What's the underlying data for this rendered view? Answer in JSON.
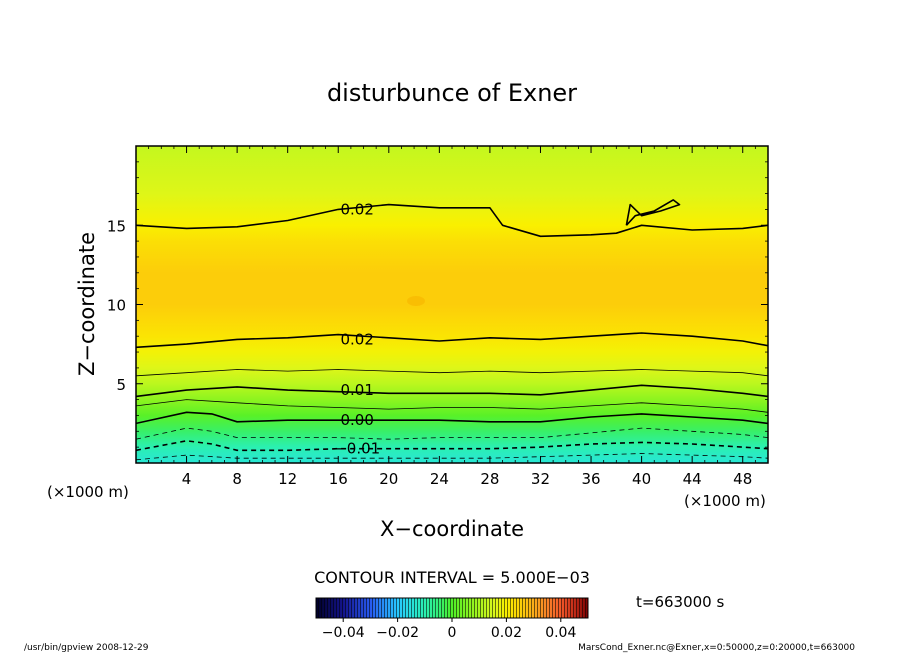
{
  "chart_data": {
    "type": "contour",
    "title": "disturbunce of Exner",
    "xlabel": "X−coordinate",
    "ylabel": "Z−coordinate",
    "x_unit_left": "(×1000 m)",
    "x_unit_right": "(×1000 m)",
    "xlim": [
      0,
      50
    ],
    "ylim": [
      0,
      20
    ],
    "xticks": [
      4,
      8,
      12,
      16,
      20,
      24,
      28,
      32,
      36,
      40,
      44,
      48
    ],
    "xtick_labels": [
      "4",
      "8",
      "12",
      "16",
      "20",
      "24",
      "28",
      "32",
      "36",
      "40",
      "44",
      "48"
    ],
    "yticks": [
      5,
      10,
      15
    ],
    "ytick_labels": [
      "5",
      "10",
      "15"
    ],
    "contour_interval_text": "CONTOUR INTERVAL = 5.000E−03",
    "time_text": "t=663000 s",
    "colorbar": {
      "min": -0.05,
      "max": 0.05,
      "tick_values": [
        -0.04,
        -0.02,
        0,
        0.02,
        0.04
      ],
      "tick_labels": [
        "−0.04",
        "−0.02",
        "0",
        "0.02",
        "0.04"
      ]
    },
    "contour_labels": [
      {
        "text": "0.02",
        "x": 17.5,
        "z": 16.0
      },
      {
        "text": "0.02",
        "x": 17.5,
        "z": 7.8
      },
      {
        "text": "0.01",
        "x": 17.5,
        "z": 4.6
      },
      {
        "text": "0.00",
        "x": 17.5,
        "z": 2.7
      },
      {
        "text": "−0.01",
        "x": 17.5,
        "z": 0.9
      }
    ],
    "field_profile": [
      {
        "z": 0,
        "value": -0.014
      },
      {
        "z": 1,
        "value": -0.01
      },
      {
        "z": 2,
        "value": -0.004
      },
      {
        "z": 3,
        "value": 0.001
      },
      {
        "z": 4,
        "value": 0.007
      },
      {
        "z": 5,
        "value": 0.012
      },
      {
        "z": 6,
        "value": 0.016
      },
      {
        "z": 7,
        "value": 0.019
      },
      {
        "z": 8,
        "value": 0.022
      },
      {
        "z": 10,
        "value": 0.026
      },
      {
        "z": 12,
        "value": 0.026
      },
      {
        "z": 14,
        "value": 0.023
      },
      {
        "z": 15,
        "value": 0.02
      },
      {
        "z": 17,
        "value": 0.016
      },
      {
        "z": 20,
        "value": 0.013
      }
    ],
    "contour_lines": [
      {
        "level": 0.02,
        "style": "solid",
        "points": [
          [
            0,
            15.0
          ],
          [
            4,
            14.8
          ],
          [
            8,
            14.9
          ],
          [
            12,
            15.3
          ],
          [
            16,
            16.0
          ],
          [
            20,
            16.3
          ],
          [
            24,
            16.1
          ],
          [
            28,
            16.1
          ],
          [
            29,
            15.0
          ],
          [
            32,
            14.3
          ],
          [
            36,
            14.4
          ],
          [
            38,
            14.5
          ],
          [
            40,
            15.0
          ],
          [
            44,
            14.7
          ],
          [
            48,
            14.8
          ],
          [
            50,
            15.0
          ]
        ]
      },
      {
        "level": 0.02,
        "style": "solid",
        "points": [
          [
            38.8,
            15.0
          ],
          [
            39.5,
            15.6
          ],
          [
            41,
            15.9
          ],
          [
            42.5,
            16.6
          ],
          [
            43,
            16.3
          ],
          [
            41.5,
            15.9
          ],
          [
            40,
            15.6
          ],
          [
            39.1,
            16.3
          ],
          [
            38.8,
            15.0
          ]
        ]
      },
      {
        "level": 0.02,
        "style": "solid",
        "points": [
          [
            0,
            7.3
          ],
          [
            4,
            7.5
          ],
          [
            8,
            7.8
          ],
          [
            12,
            7.9
          ],
          [
            16,
            8.1
          ],
          [
            20,
            7.9
          ],
          [
            24,
            7.7
          ],
          [
            28,
            7.9
          ],
          [
            32,
            7.8
          ],
          [
            36,
            8.0
          ],
          [
            40,
            8.2
          ],
          [
            44,
            8.0
          ],
          [
            48,
            7.7
          ],
          [
            50,
            7.4
          ]
        ]
      },
      {
        "level": 0.015,
        "style": "solid",
        "points": [
          [
            0,
            5.5
          ],
          [
            4,
            5.7
          ],
          [
            8,
            5.9
          ],
          [
            12,
            5.8
          ],
          [
            16,
            5.9
          ],
          [
            20,
            5.8
          ],
          [
            24,
            5.7
          ],
          [
            28,
            5.8
          ],
          [
            32,
            5.7
          ],
          [
            36,
            5.8
          ],
          [
            40,
            5.9
          ],
          [
            44,
            5.8
          ],
          [
            48,
            5.7
          ],
          [
            50,
            5.5
          ]
        ]
      },
      {
        "level": 0.01,
        "style": "solid",
        "points": [
          [
            0,
            4.2
          ],
          [
            4,
            4.6
          ],
          [
            8,
            4.8
          ],
          [
            12,
            4.6
          ],
          [
            16,
            4.5
          ],
          [
            20,
            4.4
          ],
          [
            24,
            4.4
          ],
          [
            28,
            4.4
          ],
          [
            32,
            4.3
          ],
          [
            36,
            4.6
          ],
          [
            40,
            4.9
          ],
          [
            44,
            4.7
          ],
          [
            48,
            4.4
          ],
          [
            50,
            4.2
          ]
        ]
      },
      {
        "level": 0.005,
        "style": "solid",
        "points": [
          [
            0,
            3.6
          ],
          [
            4,
            4.0
          ],
          [
            8,
            3.8
          ],
          [
            12,
            3.6
          ],
          [
            16,
            3.5
          ],
          [
            20,
            3.4
          ],
          [
            24,
            3.5
          ],
          [
            28,
            3.5
          ],
          [
            32,
            3.4
          ],
          [
            36,
            3.6
          ],
          [
            40,
            3.8
          ],
          [
            44,
            3.6
          ],
          [
            48,
            3.4
          ],
          [
            50,
            3.2
          ]
        ]
      },
      {
        "level": 0.0,
        "style": "solid",
        "points": [
          [
            0,
            2.5
          ],
          [
            4,
            3.2
          ],
          [
            6,
            3.1
          ],
          [
            8,
            2.6
          ],
          [
            12,
            2.7
          ],
          [
            16,
            2.7
          ],
          [
            20,
            2.7
          ],
          [
            24,
            2.7
          ],
          [
            28,
            2.6
          ],
          [
            32,
            2.6
          ],
          [
            36,
            2.9
          ],
          [
            40,
            3.1
          ],
          [
            44,
            2.9
          ],
          [
            48,
            2.7
          ],
          [
            50,
            2.5
          ]
        ]
      },
      {
        "level": -0.005,
        "style": "dashed",
        "points": [
          [
            0,
            1.5
          ],
          [
            4,
            2.2
          ],
          [
            6,
            2.0
          ],
          [
            8,
            1.6
          ],
          [
            12,
            1.6
          ],
          [
            16,
            1.6
          ],
          [
            20,
            1.5
          ],
          [
            24,
            1.6
          ],
          [
            28,
            1.6
          ],
          [
            32,
            1.6
          ],
          [
            36,
            1.9
          ],
          [
            40,
            2.2
          ],
          [
            44,
            2.0
          ],
          [
            48,
            1.8
          ],
          [
            50,
            1.6
          ]
        ]
      },
      {
        "level": -0.01,
        "style": "dashed",
        "points": [
          [
            0,
            0.8
          ],
          [
            4,
            1.4
          ],
          [
            6,
            1.2
          ],
          [
            8,
            0.8
          ],
          [
            12,
            0.8
          ],
          [
            16,
            0.9
          ],
          [
            20,
            0.9
          ],
          [
            24,
            0.9
          ],
          [
            28,
            0.9
          ],
          [
            32,
            1.0
          ],
          [
            36,
            1.2
          ],
          [
            40,
            1.3
          ],
          [
            44,
            1.2
          ],
          [
            48,
            1.0
          ],
          [
            50,
            0.9
          ]
        ]
      },
      {
        "level": -0.015,
        "style": "dashed",
        "points": [
          [
            0,
            0.2
          ],
          [
            4,
            0.5
          ],
          [
            8,
            0.3
          ],
          [
            12,
            0.3
          ],
          [
            16,
            0.3
          ],
          [
            20,
            0.3
          ],
          [
            24,
            0.3
          ],
          [
            28,
            0.3
          ],
          [
            32,
            0.4
          ],
          [
            36,
            0.5
          ],
          [
            40,
            0.6
          ],
          [
            44,
            0.5
          ],
          [
            48,
            0.4
          ],
          [
            50,
            0.3
          ]
        ]
      }
    ]
  },
  "footer": {
    "left": "/usr/bin/gpview   2008-12-29",
    "right": "MarsCond_Exner.nc@Exner,x=0:50000,z=0:20000,t=663000"
  }
}
